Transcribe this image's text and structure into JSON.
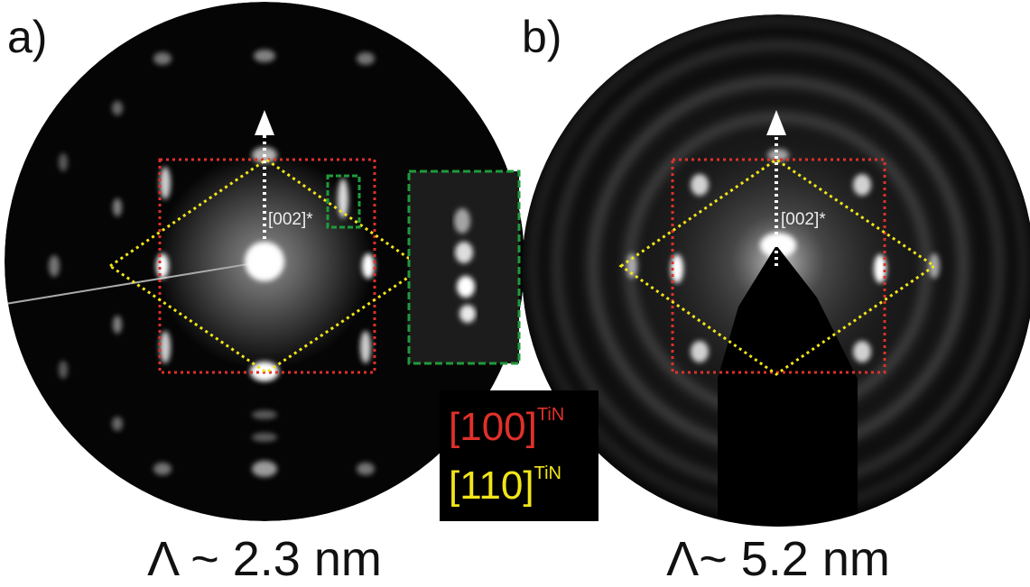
{
  "panels": [
    {
      "label": "a)",
      "direction_label": "[002]*",
      "caption": "Λ ~ 2.3 nm"
    },
    {
      "label": "b)",
      "direction_label": "[002]*",
      "caption": "Λ~ 5.2 nm"
    }
  ],
  "legend": [
    {
      "text": "[100]",
      "superscript": "TiN"
    },
    {
      "text": "[110]",
      "superscript": "TiN"
    }
  ]
}
